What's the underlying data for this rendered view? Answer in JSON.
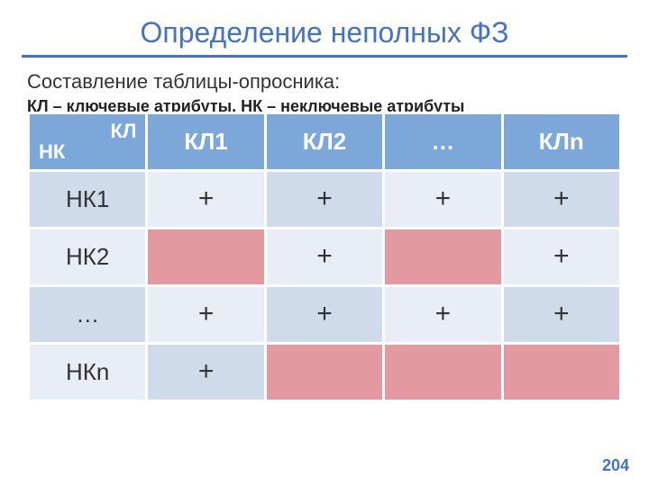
{
  "title": "Определение неполных ФЗ",
  "subtitle": "Составление таблицы-опросника:",
  "legend": "КЛ – ключевые атрибуты, НК – неключевые атрибуты",
  "page_number": "204",
  "colors": {
    "accent": "#4472c4",
    "header_bg": "#7ba7d9",
    "row_shade_a": "#cfdbea",
    "row_shade_b": "#e9eef6",
    "blank_bg": "#e29aa0",
    "text": "#333333",
    "header_text": "#ffffff"
  },
  "table": {
    "type": "table",
    "corner": {
      "top_right": "КЛ",
      "bottom_left": "НК"
    },
    "columns": [
      "КЛ1",
      "КЛ2",
      "…",
      "КЛn"
    ],
    "rows": [
      {
        "hdr": "НК1",
        "hdr_shade": "a",
        "cells": [
          {
            "v": "+",
            "shade": "b"
          },
          {
            "v": "+",
            "shade": "a"
          },
          {
            "v": "+",
            "shade": "b"
          },
          {
            "v": "+",
            "shade": "a"
          }
        ]
      },
      {
        "hdr": "НК2",
        "hdr_shade": "b",
        "cells": [
          {
            "v": "",
            "shade": "blank"
          },
          {
            "v": "+",
            "shade": "b"
          },
          {
            "v": "",
            "shade": "blank"
          },
          {
            "v": "+",
            "shade": "b"
          }
        ]
      },
      {
        "hdr": "…",
        "hdr_shade": "a",
        "cells": [
          {
            "v": "+",
            "shade": "b"
          },
          {
            "v": "+",
            "shade": "a"
          },
          {
            "v": "+",
            "shade": "b"
          },
          {
            "v": "+",
            "shade": "a"
          }
        ]
      },
      {
        "hdr": "НКn",
        "hdr_shade": "b",
        "cells": [
          {
            "v": "+",
            "shade": "a"
          },
          {
            "v": "",
            "shade": "blank"
          },
          {
            "v": "",
            "shade": "blank"
          },
          {
            "v": "",
            "shade": "blank"
          }
        ]
      }
    ]
  }
}
